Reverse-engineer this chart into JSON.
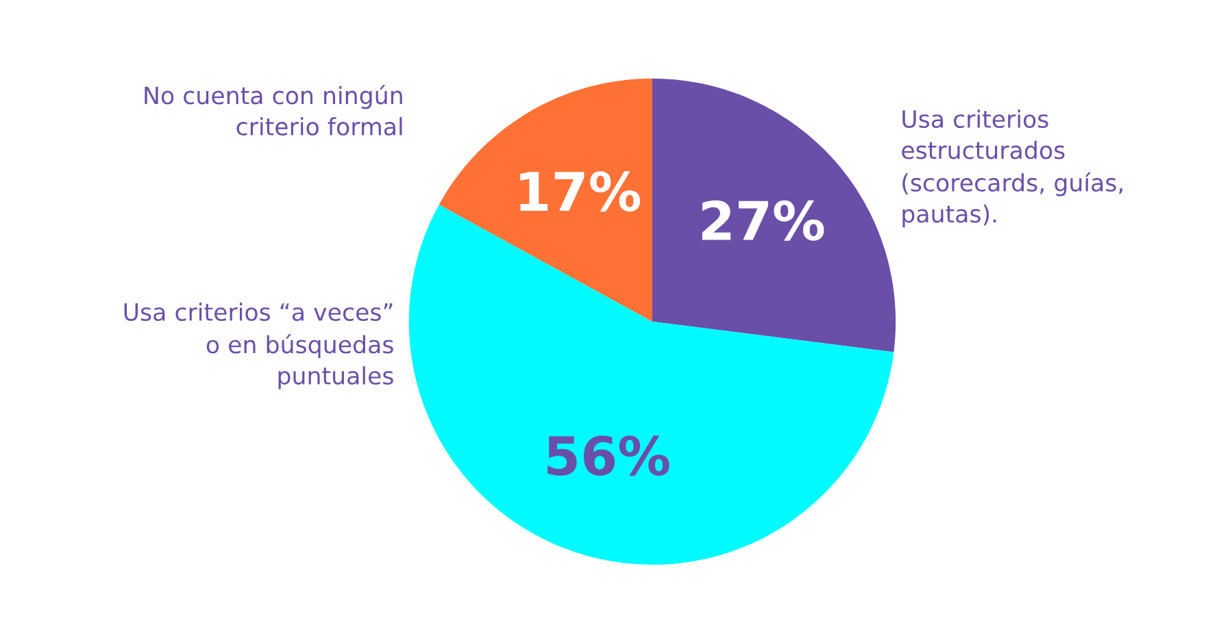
{
  "chart_data": {
    "type": "pie",
    "categories": [
      "Usa criterios\nestructurados\n(scorecards, guías,\npautas).",
      "Usa criterios “a veces”\no en búsquedas\npuntuales",
      "No cuenta con ningún\ncriterio formal"
    ],
    "values": [
      27,
      56,
      17
    ],
    "colors": [
      "#6a4fa8",
      "#00fbff",
      "#ff7135"
    ],
    "value_labels": [
      "27%",
      "56%",
      "17%"
    ]
  }
}
